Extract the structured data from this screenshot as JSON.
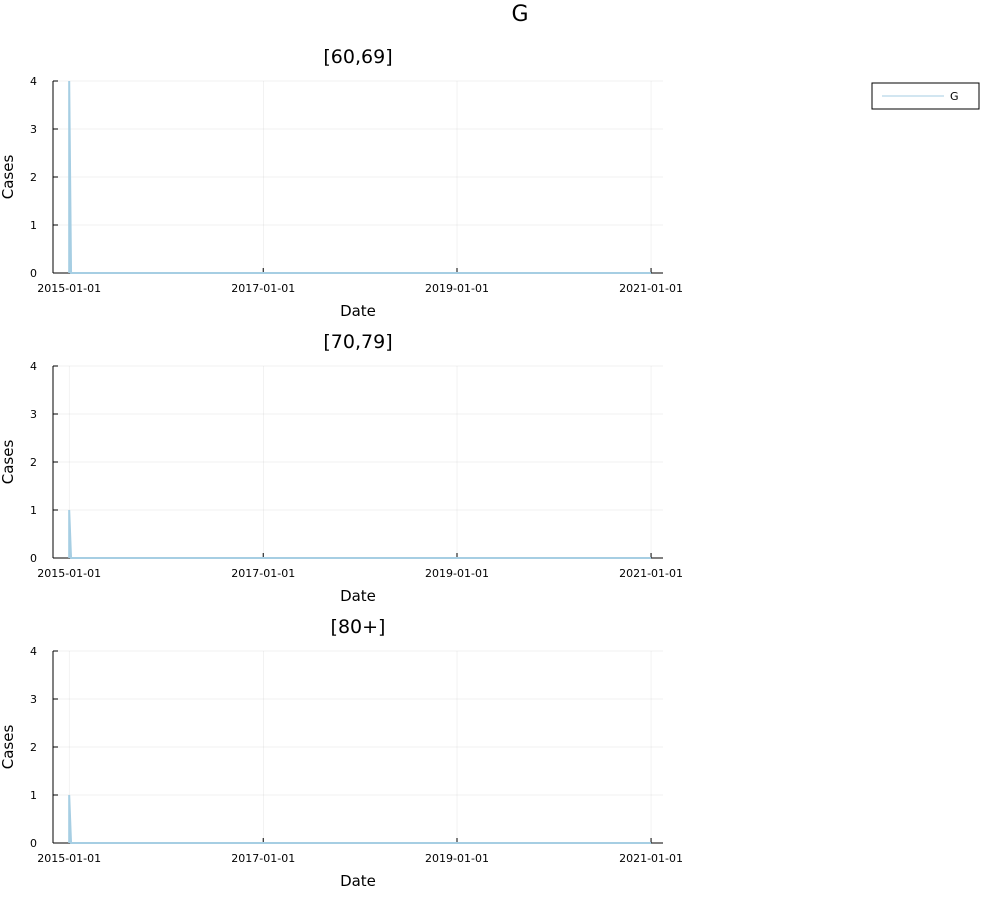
{
  "figure": {
    "title": "G"
  },
  "legend": {
    "entries": [
      {
        "label": "G",
        "color": "#a6cee3"
      }
    ]
  },
  "chart_data": [
    {
      "type": "line",
      "title": "[60,69]",
      "xlabel": "Date",
      "ylabel": "Cases",
      "xlim": [
        "2014-11-01",
        "2021-02-15"
      ],
      "ylim": [
        0,
        4
      ],
      "xticks": [
        "2015-01-01",
        "2017-01-01",
        "2019-01-01",
        "2021-01-01"
      ],
      "yticks": [
        0,
        1,
        2,
        3,
        4
      ],
      "grid": true,
      "series": [
        {
          "name": "G",
          "color": "#a6cee3",
          "x": [
            "2015-01-01",
            "2015-01-01",
            "2015-01-08",
            "2021-01-01"
          ],
          "y": [
            0,
            4,
            0,
            0
          ]
        }
      ]
    },
    {
      "type": "line",
      "title": "[70,79]",
      "xlabel": "Date",
      "ylabel": "Cases",
      "xlim": [
        "2014-11-01",
        "2021-02-15"
      ],
      "ylim": [
        0,
        4
      ],
      "xticks": [
        "2015-01-01",
        "2017-01-01",
        "2019-01-01",
        "2021-01-01"
      ],
      "yticks": [
        0,
        1,
        2,
        3,
        4
      ],
      "grid": true,
      "series": [
        {
          "name": "G",
          "color": "#a6cee3",
          "x": [
            "2015-01-01",
            "2015-01-01",
            "2015-01-08",
            "2021-01-01"
          ],
          "y": [
            0,
            1,
            0,
            0
          ]
        }
      ]
    },
    {
      "type": "line",
      "title": "[80+]",
      "xlabel": "Date",
      "ylabel": "Cases",
      "xlim": [
        "2014-11-01",
        "2021-02-15"
      ],
      "ylim": [
        0,
        4
      ],
      "xticks": [
        "2015-01-01",
        "2017-01-01",
        "2019-01-01",
        "2021-01-01"
      ],
      "yticks": [
        0,
        1,
        2,
        3,
        4
      ],
      "grid": true,
      "series": [
        {
          "name": "G",
          "color": "#a6cee3",
          "x": [
            "2015-01-01",
            "2015-01-01",
            "2015-01-08",
            "2021-01-01"
          ],
          "y": [
            0,
            1,
            0,
            0
          ]
        }
      ]
    }
  ]
}
